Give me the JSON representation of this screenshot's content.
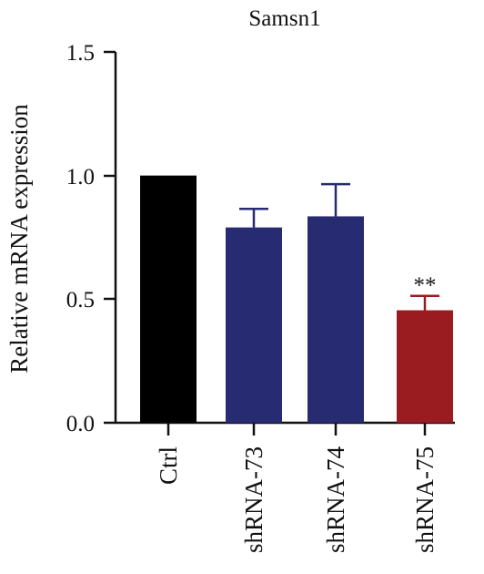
{
  "chart_data": {
    "type": "bar",
    "title": "Samsn1",
    "xlabel": "",
    "ylabel": "Relative mRNA expression",
    "ylim": [
      0,
      1.5
    ],
    "yticks": [
      "0.0",
      "0.5",
      "1.0",
      "1.5"
    ],
    "categories": [
      "Ctrl",
      "shRNA-73",
      "shRNA-74",
      "shRNA-75"
    ],
    "values": [
      1.0,
      0.79,
      0.835,
      0.455
    ],
    "errors": [
      0.0,
      0.075,
      0.13,
      0.058
    ],
    "colors": [
      "#000000",
      "#272b72",
      "#272b72",
      "#9b1c20"
    ],
    "annotations": [
      "",
      "",
      "",
      "**"
    ],
    "grid": false,
    "legend": "none"
  }
}
